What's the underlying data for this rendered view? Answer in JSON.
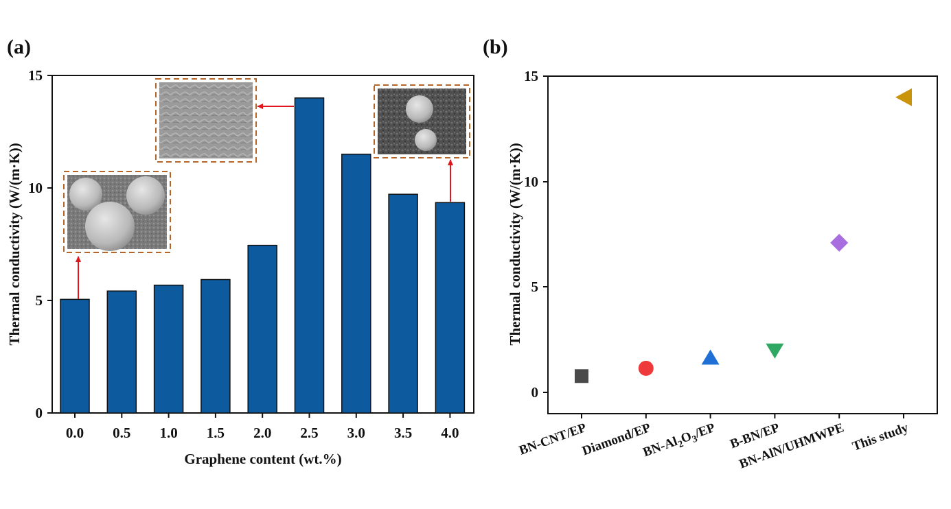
{
  "colors": {
    "bar": "#0d5a9e",
    "inset_border": "#b4662a",
    "arrow": "#e0161c"
  },
  "panels": {
    "a": {
      "label": "(a)"
    },
    "b": {
      "label": "(b)"
    }
  },
  "insets": [
    {
      "id": "sem-0wt",
      "description_icon": "sem-micrograph-spheres-icon"
    },
    {
      "id": "sem-2.5wt",
      "description_icon": "sem-micrograph-smooth-icon"
    },
    {
      "id": "sem-4wt",
      "description_icon": "sem-micrograph-particles-icon"
    }
  ],
  "chart_data": [
    {
      "type": "bar",
      "panel": "(a)",
      "categories": [
        "0.0",
        "0.5",
        "1.0",
        "1.5",
        "2.0",
        "2.5",
        "3.0",
        "3.5",
        "4.0"
      ],
      "values": [
        5.05,
        5.42,
        5.68,
        5.93,
        7.45,
        14.0,
        11.5,
        9.72,
        9.35
      ],
      "xlabel": "Graphene content (wt.%)",
      "ylabel": "Thermal conductivity (W/(m·K))",
      "ylim": [
        0,
        15
      ],
      "yticks": [
        "0",
        "5",
        "10",
        "15"
      ],
      "grid": false
    },
    {
      "type": "scatter",
      "panel": "(b)",
      "categories": [
        "BN-CNT/EP",
        "Diamond/EP",
        "BN-Al2O3/EP",
        "B-BN/EP",
        "BN-AlN/UHMWPE",
        "This study"
      ],
      "values": [
        0.78,
        1.15,
        1.65,
        2.0,
        7.1,
        14.0
      ],
      "markers": [
        {
          "shape": "square",
          "color": "#4a4a4a"
        },
        {
          "shape": "circle",
          "color": "#ee3a3a"
        },
        {
          "shape": "triangle-up",
          "color": "#1e6fd6"
        },
        {
          "shape": "triangle-down",
          "color": "#2ea862"
        },
        {
          "shape": "diamond",
          "color": "#a86ee0"
        },
        {
          "shape": "triangle-left",
          "color": "#c9940a"
        }
      ],
      "ylabel": "Thermal conductivity (W/(m·K))",
      "ylim": [
        -1,
        15
      ],
      "yticks": [
        "0",
        "5",
        "10",
        "15"
      ],
      "grid": false
    }
  ]
}
